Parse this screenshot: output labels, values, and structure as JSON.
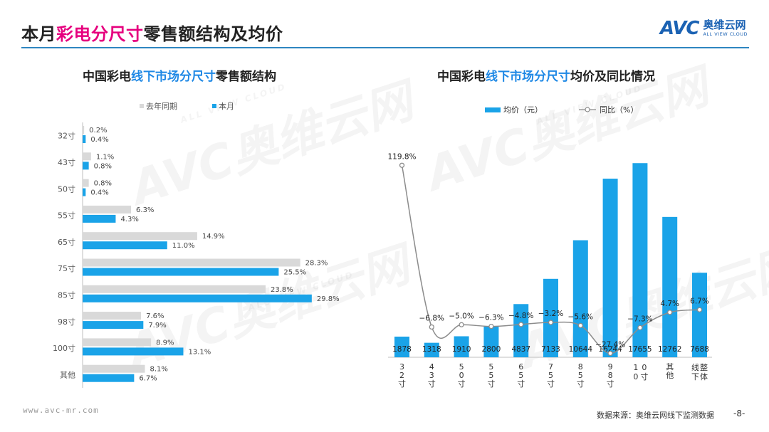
{
  "header": {
    "title_prefix": "本月",
    "title_highlight": "彩电分尺寸",
    "title_suffix": "零售额结构及均价",
    "logo_mark": "AVC",
    "logo_cn": "奥维云网",
    "logo_en": "ALL VIEW CLOUD"
  },
  "left_chart": {
    "title_prefix": "中国彩电",
    "title_highlight": "线下市场分尺寸",
    "title_suffix": "零售额结构"
  },
  "right_chart": {
    "title_prefix": "中国彩电",
    "title_highlight": "线下市场分尺寸",
    "title_suffix": "均价及同比情况"
  },
  "watermark": {
    "mark": "AVC奥维云网",
    "sub": "ALL VIEW CLOUD"
  },
  "footer": {
    "url": "www.avc-mr.com",
    "source": "数据来源：奥维云网线下监测数据",
    "page": "-8-"
  },
  "colors": {
    "accent": "#e6007e",
    "blue": "#1aa3e8",
    "gray_bar": "#d9d9d9",
    "line": "#8c8c8c",
    "rule": "#2e86c1"
  },
  "chart_data": [
    {
      "type": "bar",
      "orientation": "horizontal",
      "categories": [
        "32寸",
        "43寸",
        "50寸",
        "55寸",
        "65寸",
        "75寸",
        "85寸",
        "98寸",
        "100寸",
        "其他"
      ],
      "series": [
        {
          "name": "去年同期",
          "values": [
            0.2,
            1.1,
            0.8,
            6.3,
            14.9,
            28.3,
            23.8,
            7.6,
            8.9,
            8.1
          ],
          "labels": [
            "0.2%",
            "1.1%",
            "0.8%",
            "6.3%",
            "14.9%",
            "28.3%",
            "23.8%",
            "7.6%",
            "8.9%",
            "8.1%"
          ],
          "color": "#d9d9d9"
        },
        {
          "name": "本月",
          "values": [
            0.4,
            0.8,
            0.4,
            4.3,
            11.0,
            25.5,
            29.8,
            7.9,
            13.1,
            6.7
          ],
          "labels": [
            "0.4%",
            "0.8%",
            "0.4%",
            "4.3%",
            "11.0%",
            "25.5%",
            "29.8%",
            "7.9%",
            "13.1%",
            "6.7%"
          ],
          "color": "#1aa3e8"
        }
      ],
      "legend_position": "top-left",
      "xlim": [
        0,
        35
      ]
    },
    {
      "type": "bar",
      "categories": [
        "32寸",
        "43寸",
        "50寸",
        "55寸",
        "65寸",
        "75寸",
        "85寸",
        "98寸",
        "100寸",
        "其他",
        "线下整体"
      ],
      "series": [
        {
          "name": "均价（元）",
          "type": "bar",
          "values": [
            1878,
            1318,
            1910,
            2800,
            4837,
            7133,
            10644,
            16244,
            17655,
            12762,
            7688
          ],
          "labels": [
            "1878",
            "1318",
            "1910",
            "2800",
            "4837",
            "7133",
            "10644",
            "16244",
            "17655",
            "12762",
            "7688"
          ],
          "color": "#1aa3e8"
        },
        {
          "name": "同比（%）",
          "type": "line",
          "values": [
            119.8,
            -6.8,
            -5.0,
            -6.3,
            -4.8,
            -3.2,
            -5.6,
            -27.4,
            -7.3,
            4.7,
            6.7
          ],
          "labels": [
            "119.8%",
            "-6.8%",
            "-5.0%",
            "-6.3%",
            "-4.8%",
            "-3.2%",
            "-5.6%",
            "-27.4%",
            "-7.3%",
            "4.7%",
            "6.7%"
          ],
          "color": "#8c8c8c"
        }
      ],
      "legend_position": "top",
      "ylim_bar": [
        0,
        20000
      ],
      "ylim_line": [
        -40,
        140
      ]
    }
  ]
}
